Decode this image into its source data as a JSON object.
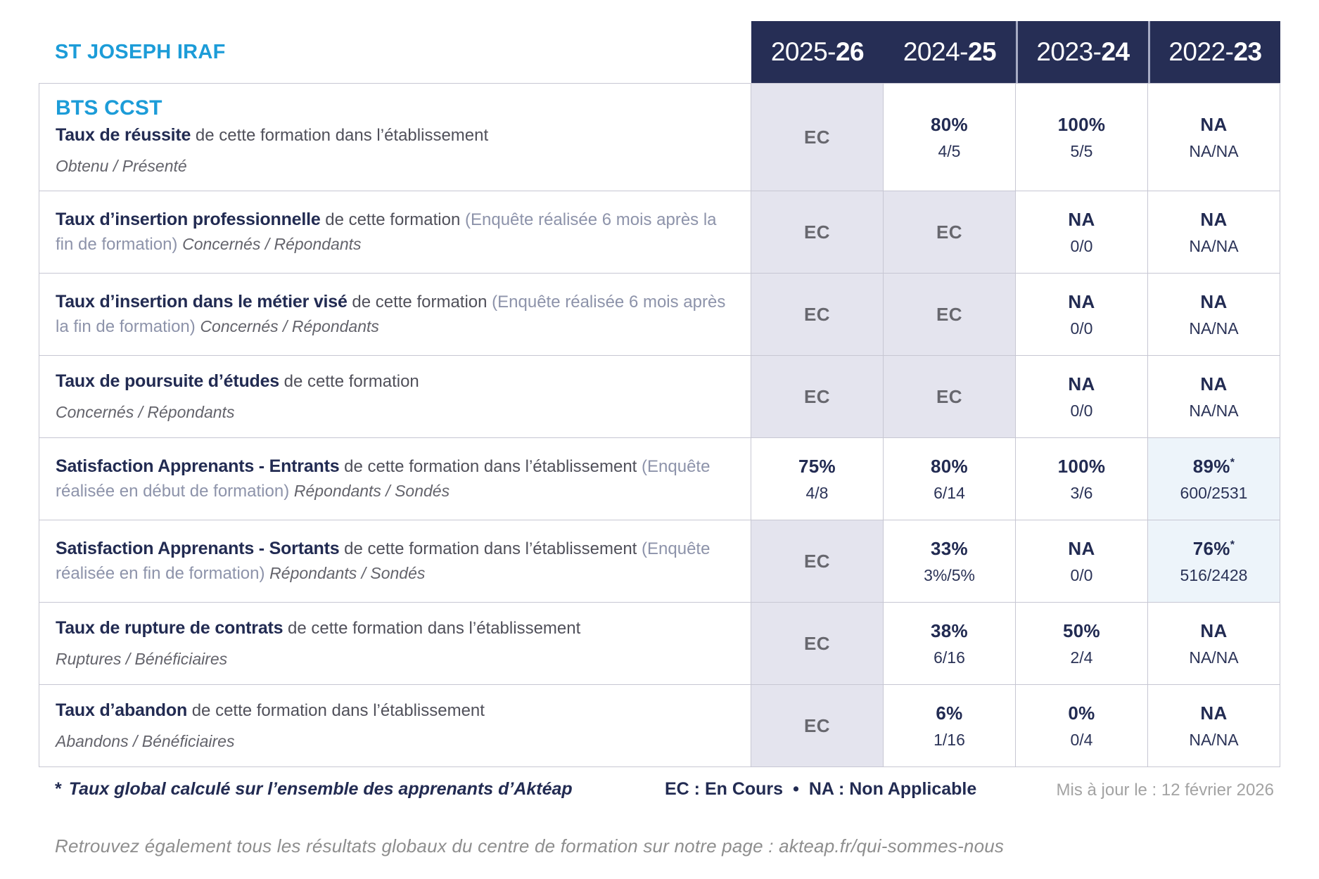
{
  "brand": {
    "school": "ST JOSEPH IRAF",
    "program": "BTS CCST"
  },
  "columns": [
    {
      "prefix": "2025-",
      "suffix": "26"
    },
    {
      "prefix": "2024-",
      "suffix": "25"
    },
    {
      "prefix": "2023-",
      "suffix": "24"
    },
    {
      "prefix": "2022-",
      "suffix": "23"
    }
  ],
  "rows": [
    {
      "pre_title": "BTS CCST",
      "title": "Taux de réussite",
      "desc": "de cette formation dans l’établissement",
      "paren": "",
      "sub": "Obtenu / Présenté",
      "sub_block": true,
      "cells": [
        {
          "main": "EC"
        },
        {
          "main": "80%",
          "sub": "4/5"
        },
        {
          "main": "100%",
          "sub": "5/5"
        },
        {
          "main": "NA",
          "sub": "NA/NA"
        }
      ]
    },
    {
      "pre_title": "",
      "title": "Taux d’insertion professionnelle",
      "desc": "de cette formation",
      "paren": "(Enquête réalisée 6 mois après la fin de formation)",
      "sub": "Concernés / Répondants",
      "sub_block": false,
      "cells": [
        {
          "main": "EC"
        },
        {
          "main": "EC"
        },
        {
          "main": "NA",
          "sub": "0/0"
        },
        {
          "main": "NA",
          "sub": "NA/NA"
        }
      ]
    },
    {
      "pre_title": "",
      "title": "Taux d’insertion dans le métier visé",
      "desc": "de cette formation",
      "paren": "(Enquête réalisée 6 mois après la fin de formation)",
      "sub": "Concernés / Répondants",
      "sub_block": false,
      "cells": [
        {
          "main": "EC"
        },
        {
          "main": "EC"
        },
        {
          "main": "NA",
          "sub": "0/0"
        },
        {
          "main": "NA",
          "sub": "NA/NA"
        }
      ]
    },
    {
      "pre_title": "",
      "title": "Taux de poursuite d’études",
      "desc": "de cette formation",
      "paren": "",
      "sub": "Concernés / Répondants",
      "sub_block": true,
      "cells": [
        {
          "main": "EC"
        },
        {
          "main": "EC"
        },
        {
          "main": "NA",
          "sub": "0/0"
        },
        {
          "main": "NA",
          "sub": "NA/NA"
        }
      ]
    },
    {
      "pre_title": "",
      "title": "Satisfaction Apprenants - Entrants",
      "desc": "de cette formation dans l’établissement",
      "paren": "(Enquête réalisée en début de formation)",
      "sub": "Répondants / Sondés",
      "sub_block": false,
      "cells": [
        {
          "main": "75%",
          "sub": "4/8"
        },
        {
          "main": "80%",
          "sub": "6/14"
        },
        {
          "main": "100%",
          "sub": "3/6"
        },
        {
          "main": "89%",
          "star": "*",
          "sub": "600/2531",
          "highlight": true
        }
      ]
    },
    {
      "pre_title": "",
      "title": "Satisfaction Apprenants - Sortants",
      "desc": "de cette formation dans l’établissement",
      "paren": "(Enquête réalisée en fin de formation)",
      "sub": "Répondants / Sondés",
      "sub_block": false,
      "cells": [
        {
          "main": "EC"
        },
        {
          "main": "33%",
          "sub": "3%/5%"
        },
        {
          "main": "NA",
          "sub": "0/0"
        },
        {
          "main": "76%",
          "star": "*",
          "sub": "516/2428",
          "highlight": true
        }
      ]
    },
    {
      "pre_title": "",
      "title": "Taux de rupture de contrats",
      "desc": "de cette formation dans l’établissement",
      "paren": "",
      "sub": "Ruptures / Bénéficiaires",
      "sub_block": true,
      "cells": [
        {
          "main": "EC"
        },
        {
          "main": "38%",
          "sub": "6/16"
        },
        {
          "main": "50%",
          "sub": "2/4"
        },
        {
          "main": "NA",
          "sub": "NA/NA"
        }
      ]
    },
    {
      "pre_title": "",
      "title": "Taux d’abandon",
      "desc": "de cette formation dans l’établissement",
      "paren": "",
      "sub": "Abandons / Bénéficiaires",
      "sub_block": true,
      "cells": [
        {
          "main": "EC"
        },
        {
          "main": "6%",
          "sub": "1/16"
        },
        {
          "main": "0%",
          "sub": "0/4"
        },
        {
          "main": "NA",
          "sub": "NA/NA"
        }
      ]
    }
  ],
  "legend": {
    "star": "*",
    "note": "Taux global calculé sur l’ensemble des apprenants d’Aktéap",
    "ec": "EC : En Cours",
    "bullet": "•",
    "na": "NA : Non Applicable",
    "updated": "Mis à jour le : 12 février 2026"
  },
  "footer_link": "Retrouvez également tous les résultats globaux du centre de formation sur notre page : akteap.fr/qui-sommes-nous",
  "colors": {
    "accent": "#1C9CD8",
    "navy": "#222B52",
    "header_bg": "#262E55",
    "ec_cell_bg": "#E4E4EE",
    "highlight_cell_bg": "#EDF4FA",
    "border": "#C7C7D3"
  }
}
